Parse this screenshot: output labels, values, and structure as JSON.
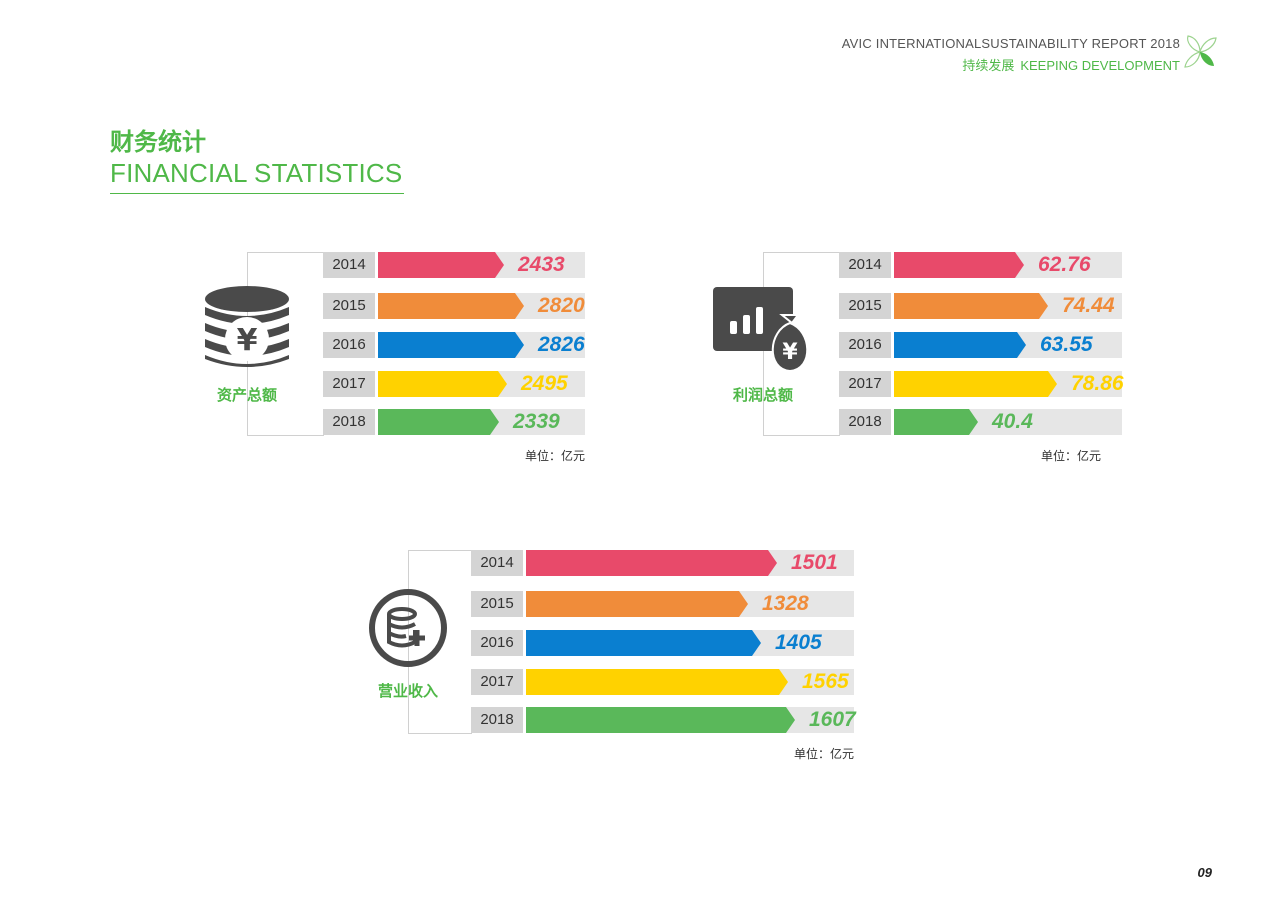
{
  "header": {
    "line1": "AVIC INTERNATIONALSUSTAINABILITY REPORT 2018",
    "line2_cn": "持续发展",
    "line2_en": "KEEPING DEVELOPMENT"
  },
  "section": {
    "title_cn": "财务统计",
    "title_en": "FINANCIAL STATISTICS"
  },
  "colors": {
    "accent": "#4fb848",
    "year_colors": [
      "#e84a6a",
      "#f08c3a",
      "#0a7fd0",
      "#ffd200",
      "#5ab85a"
    ],
    "icon_gray": "#4a4a4a"
  },
  "chart_data": [
    {
      "type": "bar",
      "metric": "资产总额",
      "unit": "单位：亿元",
      "icon": "coin-stack-yuan-icon",
      "categories": [
        "2014",
        "2015",
        "2016",
        "2017",
        "2018"
      ],
      "values": [
        2433,
        2820,
        2826,
        2495,
        2339
      ],
      "labels": [
        "2433",
        "2820",
        "2826",
        "2495",
        "2339"
      ],
      "xlim": [
        0,
        4000
      ]
    },
    {
      "type": "bar",
      "metric": "利润总额",
      "unit": "单位：亿元",
      "icon": "bar-chart-money-bag-icon",
      "categories": [
        "2014",
        "2015",
        "2016",
        "2017",
        "2018"
      ],
      "values": [
        62.76,
        74.44,
        63.55,
        78.86,
        40.4
      ],
      "labels": [
        "62.76",
        "74.44",
        "63.55",
        "78.86",
        "40.4"
      ],
      "xlim": [
        0,
        110
      ]
    },
    {
      "type": "bar",
      "metric": "营业收入",
      "unit": "单位：亿元",
      "icon": "database-plus-icon",
      "categories": [
        "2014",
        "2015",
        "2016",
        "2017",
        "2018"
      ],
      "values": [
        1501,
        1328,
        1405,
        1565,
        1607
      ],
      "labels": [
        "1501",
        "1328",
        "1405",
        "1565",
        "1607"
      ],
      "xlim": [
        0,
        1960
      ]
    }
  ],
  "page_number": "09"
}
